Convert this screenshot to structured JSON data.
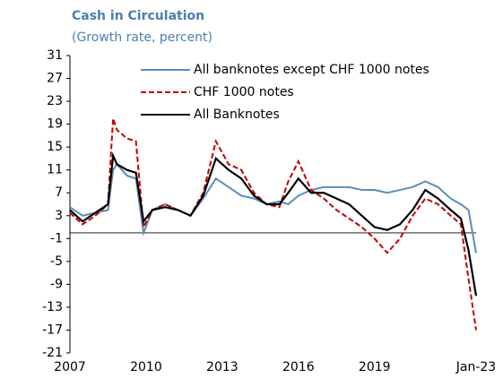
{
  "chart_data": {
    "type": "line",
    "title": "Cash in Circulation",
    "subtitle": "(Growth rate, percent)",
    "x": [
      2007,
      2007.5,
      2008,
      2008.5,
      2008.7,
      2008.85,
      2009.25,
      2009.6,
      2009.9,
      2010.25,
      2010.75,
      2011.25,
      2011.75,
      2012.25,
      2012.75,
      2013.25,
      2013.75,
      2014.25,
      2014.75,
      2015.25,
      2015.6,
      2016,
      2016.5,
      2017,
      2017.5,
      2018,
      2018.5,
      2019,
      2019.5,
      2020,
      2020.5,
      2021,
      2021.5,
      2022,
      2022.4,
      2022.7,
      2023
    ],
    "series": [
      {
        "name": "All banknotes except CHF 1000 notes",
        "color": "#5b8db8",
        "dash": false,
        "values": [
          4.5,
          3,
          3.5,
          4,
          11,
          12,
          10,
          9.5,
          0,
          4,
          5,
          4,
          3,
          6,
          9.5,
          8,
          6.5,
          6,
          5,
          5.5,
          5,
          6.5,
          7.5,
          8,
          8,
          8,
          7.5,
          7.5,
          7,
          7.5,
          8,
          9,
          8,
          6,
          5,
          4,
          -3.5
        ]
      },
      {
        "name": "CHF 1000 notes",
        "color": "#c00000",
        "dash": true,
        "values": [
          3.5,
          1.5,
          3,
          5,
          20,
          18,
          16.5,
          16,
          1,
          4,
          5,
          4,
          3,
          7,
          16,
          12,
          11,
          7,
          5,
          4.5,
          9,
          12.5,
          7.5,
          6,
          4,
          2.5,
          1,
          -1,
          -3.5,
          -1,
          3,
          6,
          5,
          3,
          1.5,
          -8,
          -17
        ]
      },
      {
        "name": "All Banknotes",
        "color": "#000000",
        "dash": false,
        "values": [
          4,
          2,
          3.5,
          5,
          13.5,
          12,
          11,
          10.5,
          2,
          4,
          4.5,
          4,
          3,
          6.5,
          13,
          11,
          9.5,
          6.5,
          5,
          5,
          7,
          9.5,
          7,
          7,
          6,
          5,
          3,
          1,
          0.5,
          1.5,
          4,
          7.5,
          6,
          4,
          2.5,
          -3,
          -11
        ]
      }
    ],
    "xlim": [
      2007,
      2023
    ],
    "xticks": [
      2007,
      2010,
      2013,
      2016,
      2019,
      {
        "value": 2023,
        "label": "Jan-23"
      }
    ],
    "ylim": [
      -21,
      31
    ],
    "yticks": [
      31,
      27,
      23,
      19,
      15,
      11,
      7,
      3,
      -1,
      -5,
      -9,
      -13,
      -17,
      -21
    ]
  }
}
